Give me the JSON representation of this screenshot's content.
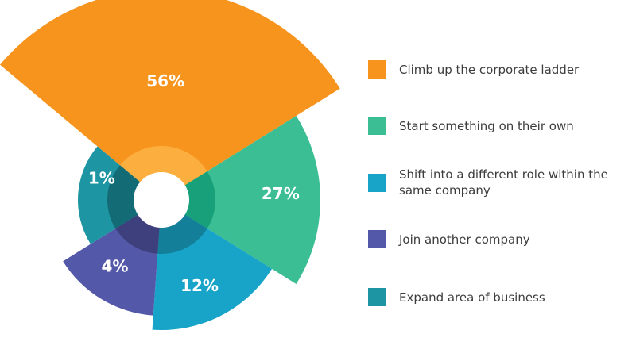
{
  "chart_data": {
    "type": "pie",
    "categories": [
      "Climb up the corporate ladder",
      "Start something on their own",
      "Shift into a different role within the same company",
      "Join another company",
      "Expand area of business"
    ],
    "values": [
      56,
      27,
      12,
      4,
      1
    ],
    "value_labels": [
      "56%",
      "27%",
      "12%",
      "4%",
      "1%"
    ],
    "colors": [
      "#F7941D",
      "#3CBE94",
      "#17A4C8",
      "#5358A8",
      "#1E95A3"
    ],
    "legend_placement": "right"
  },
  "legend": {
    "items": [
      {
        "label": "Climb up the corporate ladder",
        "color": "#F7941D"
      },
      {
        "label": "Start something on their own",
        "color": "#3CBE94"
      },
      {
        "label": "Shift into a different role within the same company",
        "color": "#17A4C8"
      },
      {
        "label": "Join another company",
        "color": "#5358A8"
      },
      {
        "label": "Expand area of business",
        "color": "#1E95A3"
      }
    ]
  }
}
